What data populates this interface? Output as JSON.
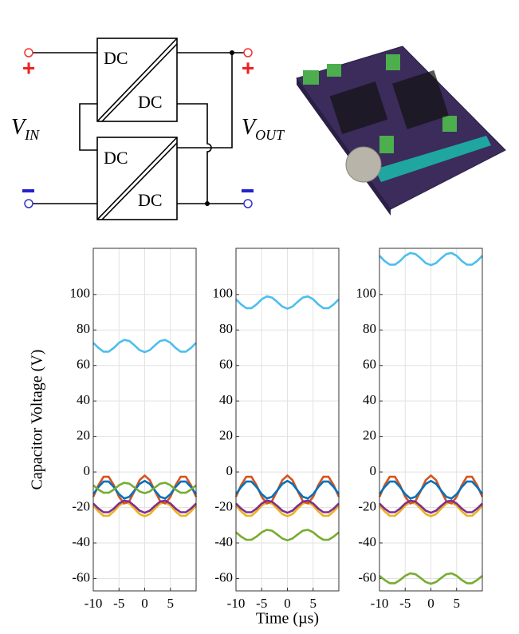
{
  "diagram": {
    "converters": [
      {
        "top": "DC",
        "bottom": "DC"
      },
      {
        "top": "DC",
        "bottom": "DC"
      }
    ],
    "v_in": {
      "main": "V",
      "sub": "IN"
    },
    "v_out": {
      "main": "V",
      "sub": "OUT"
    },
    "plus": "+"
  },
  "chart_data": [
    {
      "type": "line",
      "y_label": "Capacitor Voltage (V)",
      "x": [
        -10,
        -9,
        -8,
        -7,
        -6,
        -5,
        -4,
        -3,
        -2,
        -1,
        0,
        1,
        2,
        3,
        4,
        5,
        6,
        7,
        8,
        9,
        10
      ],
      "xlim": [
        -10,
        10
      ],
      "xticks": [
        -10,
        -5,
        0,
        5
      ],
      "ylim": [
        -67,
        126
      ],
      "yticks": [
        -60,
        -40,
        -20,
        0,
        20,
        40,
        60,
        80,
        100
      ],
      "grid": true,
      "series": [
        {
          "color": "#4DBEEE",
          "values": [
            72.8,
            69.9,
            67.8,
            67.8,
            69.9,
            72.8,
            74.4,
            73.8,
            71.4,
            68.7,
            67.5,
            68.7,
            71.4,
            73.8,
            74.4,
            72.8,
            69.9,
            67.8,
            67.8,
            69.9,
            72.8
          ]
        },
        {
          "color": "#EDB120",
          "values": [
            -19,
            -22.2,
            -24.7,
            -24.7,
            -22.2,
            -19,
            -17.1,
            -17.8,
            -20.6,
            -23.7,
            -25,
            -23.7,
            -20.6,
            -17.8,
            -17.1,
            -19,
            -22.2,
            -24.7,
            -24.7,
            -22.2,
            -19
          ]
        },
        {
          "color": "#D95319",
          "values": [
            -14,
            -7.5,
            -2.7,
            -2.7,
            -7.5,
            -14,
            -17.8,
            -16.5,
            -10.8,
            -4.6,
            -2,
            -4.6,
            -10.8,
            -16.5,
            -17.8,
            -14,
            -7.5,
            -2.7,
            -2.7,
            -7.5,
            -14
          ]
        },
        {
          "color": "#0072BD",
          "values": [
            -12.5,
            -8.5,
            -5.4,
            -5.4,
            -8.5,
            -12.5,
            -14.9,
            -14,
            -10.5,
            -6.7,
            -5,
            -6.7,
            -10.5,
            -14,
            -14.9,
            -12.5,
            -8.5,
            -5.4,
            -5.4,
            -8.5,
            -12.5
          ]
        },
        {
          "color": "#7E2F8E",
          "values": [
            -17.8,
            -20.6,
            -22.7,
            -22.7,
            -20.6,
            -17.8,
            -16.1,
            -16.7,
            -19.1,
            -21.8,
            -23,
            -21.8,
            -19.1,
            -16.7,
            -16.1,
            -17.8,
            -20.6,
            -22.7,
            -22.7,
            -20.6,
            -17.8
          ]
        },
        {
          "color": "#77AC30",
          "values": [
            -7.5,
            -9.9,
            -11.7,
            -11.7,
            -9.9,
            -7.5,
            -6.1,
            -6.6,
            -8.7,
            -11,
            -12,
            -11,
            -8.7,
            -6.6,
            -6.1,
            -7.5,
            -9.9,
            -11.7,
            -11.7,
            -9.9,
            -7.5
          ]
        }
      ]
    },
    {
      "type": "line",
      "x_label": "Time (µs)",
      "x": [
        -10,
        -9,
        -8,
        -7,
        -6,
        -5,
        -4,
        -3,
        -2,
        -1,
        0,
        1,
        2,
        3,
        4,
        5,
        6,
        7,
        8,
        9,
        10
      ],
      "xlim": [
        -10,
        10
      ],
      "xticks": [
        -10,
        -5,
        0,
        5
      ],
      "ylim": [
        -67,
        126
      ],
      "yticks": [
        -60,
        -40,
        -20,
        0,
        20,
        40,
        60,
        80,
        100
      ],
      "grid": true,
      "series": [
        {
          "color": "#4DBEEE",
          "values": [
            97.3,
            94.4,
            92.3,
            92.3,
            94.4,
            97.3,
            98.9,
            98.3,
            95.9,
            93.2,
            92,
            93.2,
            95.9,
            98.3,
            98.9,
            97.3,
            94.4,
            92.3,
            92.3,
            94.4,
            97.3
          ]
        },
        {
          "color": "#EDB120",
          "values": [
            -19,
            -22.2,
            -24.7,
            -24.7,
            -22.2,
            -19,
            -17.1,
            -17.8,
            -20.6,
            -23.7,
            -25,
            -23.7,
            -20.6,
            -17.8,
            -17.1,
            -19,
            -22.2,
            -24.7,
            -24.7,
            -22.2,
            -19
          ]
        },
        {
          "color": "#D95319",
          "values": [
            -14,
            -7.5,
            -2.7,
            -2.7,
            -7.5,
            -14,
            -17.8,
            -16.5,
            -10.8,
            -4.6,
            -2,
            -4.6,
            -10.8,
            -16.5,
            -17.8,
            -14,
            -7.5,
            -2.7,
            -2.7,
            -7.5,
            -14
          ]
        },
        {
          "color": "#0072BD",
          "values": [
            -12.5,
            -8.5,
            -5.4,
            -5.4,
            -8.5,
            -12.5,
            -14.9,
            -14,
            -10.5,
            -6.7,
            -5,
            -6.7,
            -10.5,
            -14,
            -14.9,
            -12.5,
            -8.5,
            -5.4,
            -5.4,
            -8.5,
            -12.5
          ]
        },
        {
          "color": "#7E2F8E",
          "values": [
            -17.8,
            -20.6,
            -22.7,
            -22.7,
            -20.6,
            -17.8,
            -16.1,
            -16.7,
            -19.1,
            -21.8,
            -23,
            -21.8,
            -19.1,
            -16.7,
            -16.1,
            -17.8,
            -20.6,
            -22.7,
            -22.7,
            -20.6,
            -17.8
          ]
        },
        {
          "color": "#77AC30",
          "values": [
            -34,
            -36.4,
            -38.2,
            -38.2,
            -36.4,
            -34,
            -32.6,
            -33.1,
            -35.2,
            -37.5,
            -38.5,
            -37.5,
            -35.2,
            -33.1,
            -32.6,
            -34,
            -36.4,
            -38.2,
            -38.2,
            -36.4,
            -34
          ]
        }
      ]
    },
    {
      "type": "line",
      "x": [
        -10,
        -9,
        -8,
        -7,
        -6,
        -5,
        -4,
        -3,
        -2,
        -1,
        0,
        1,
        2,
        3,
        4,
        5,
        6,
        7,
        8,
        9,
        10
      ],
      "xlim": [
        -10,
        10
      ],
      "xticks": [
        -10,
        -5,
        0,
        5
      ],
      "ylim": [
        -67,
        126
      ],
      "yticks": [
        -60,
        -40,
        -20,
        0,
        20,
        40,
        60,
        80,
        100
      ],
      "grid": true,
      "series": [
        {
          "color": "#4DBEEE",
          "values": [
            121.8,
            118.9,
            116.8,
            116.8,
            118.9,
            121.8,
            123.4,
            122.8,
            120.4,
            117.7,
            116.5,
            117.7,
            120.4,
            122.8,
            123.4,
            121.8,
            118.9,
            116.8,
            116.8,
            118.9,
            121.8
          ]
        },
        {
          "color": "#EDB120",
          "values": [
            -19,
            -22.2,
            -24.7,
            -24.7,
            -22.2,
            -19,
            -17.1,
            -17.8,
            -20.6,
            -23.7,
            -25,
            -23.7,
            -20.6,
            -17.8,
            -17.1,
            -19,
            -22.2,
            -24.7,
            -24.7,
            -22.2,
            -19
          ]
        },
        {
          "color": "#D95319",
          "values": [
            -14,
            -7.5,
            -2.7,
            -2.7,
            -7.5,
            -14,
            -17.8,
            -16.5,
            -10.8,
            -4.6,
            -2,
            -4.6,
            -10.8,
            -16.5,
            -17.8,
            -14,
            -7.5,
            -2.7,
            -2.7,
            -7.5,
            -14
          ]
        },
        {
          "color": "#0072BD",
          "values": [
            -12.5,
            -8.5,
            -5.4,
            -5.4,
            -8.5,
            -12.5,
            -14.9,
            -14,
            -10.5,
            -6.7,
            -5,
            -6.7,
            -10.5,
            -14,
            -14.9,
            -12.5,
            -8.5,
            -5.4,
            -5.4,
            -8.5,
            -12.5
          ]
        },
        {
          "color": "#7E2F8E",
          "values": [
            -17.8,
            -20.6,
            -22.7,
            -22.7,
            -20.6,
            -17.8,
            -16.1,
            -16.7,
            -19.1,
            -21.8,
            -23,
            -21.8,
            -19.1,
            -16.7,
            -16.1,
            -17.8,
            -20.6,
            -22.7,
            -22.7,
            -20.6,
            -17.8
          ]
        },
        {
          "color": "#77AC30",
          "values": [
            -58.5,
            -60.9,
            -62.7,
            -62.7,
            -60.9,
            -58.5,
            -57.1,
            -57.6,
            -59.7,
            -62,
            -63,
            -62,
            -59.7,
            -57.6,
            -57.1,
            -58.5,
            -60.9,
            -62.7,
            -62.7,
            -60.9,
            -58.5
          ]
        }
      ]
    }
  ]
}
